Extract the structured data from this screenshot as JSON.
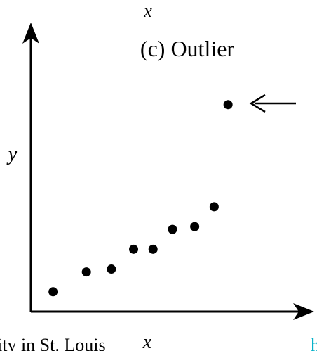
{
  "chart_data": {
    "type": "scatter",
    "title": "(c) Outlier",
    "x_label": "x",
    "y_label": "y",
    "xlim": [
      0,
      10
    ],
    "ylim": [
      0,
      10
    ],
    "series": [
      {
        "color": "#000000",
        "x": [
          0.8,
          2.0,
          2.9,
          3.7,
          4.4,
          5.1,
          5.9,
          6.6,
          7.1
        ],
        "values": [
          0.7,
          1.4,
          1.5,
          2.2,
          2.2,
          2.9,
          3.0,
          3.7,
          7.3
        ]
      }
    ]
  },
  "page_texts": {
    "top_label": "x",
    "caption_fragment": "ity in St. Louis",
    "link_fragment": "h"
  }
}
